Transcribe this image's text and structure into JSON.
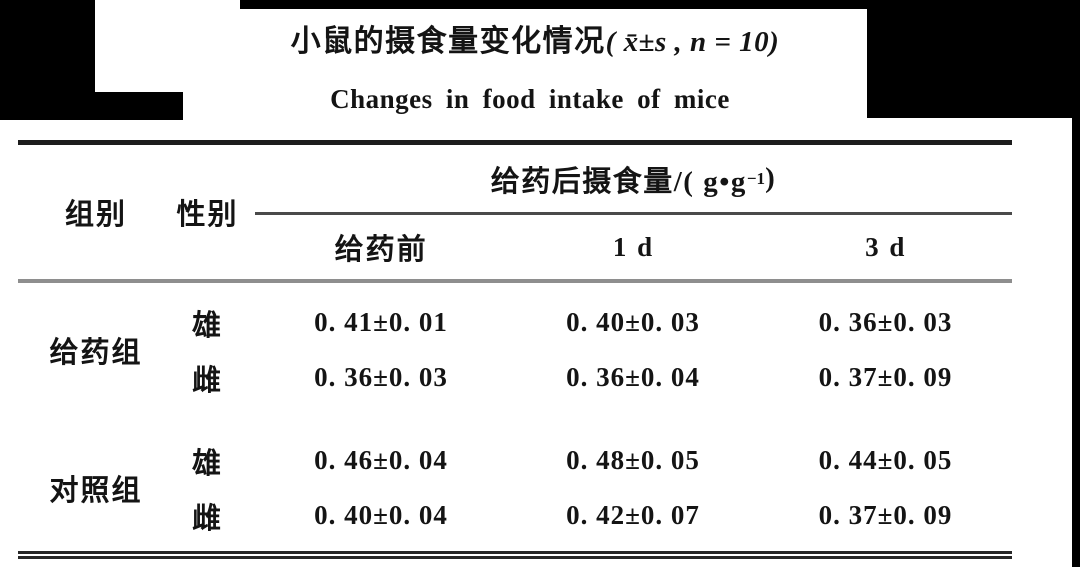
{
  "title": {
    "zh_main": "小鼠的摄食量变化情况",
    "zh_stat": "( x̄±s , n = 10)",
    "en": "Changes in food intake of mice"
  },
  "table": {
    "col_group": "组别",
    "col_sex": "性别",
    "spanner": {
      "prefix": "给药后摄食量/( g•g",
      "sup": "−1",
      "suffix": ")"
    },
    "subcols": [
      "给药前",
      "1 d",
      "3 d"
    ],
    "groups": [
      {
        "name": "给药组",
        "rows": [
          {
            "sex": "雄",
            "values": [
              "0. 41±0. 01",
              "0. 40±0. 03",
              "0. 36±0. 03"
            ]
          },
          {
            "sex": "雌",
            "values": [
              "0. 36±0. 03",
              "0. 36±0. 04",
              "0. 37±0. 09"
            ]
          }
        ]
      },
      {
        "name": "对照组",
        "rows": [
          {
            "sex": "雄",
            "values": [
              "0. 46±0. 04",
              "0. 48±0. 05",
              "0. 44±0. 05"
            ]
          },
          {
            "sex": "雌",
            "values": [
              "0. 40±0. 04",
              "0. 42±0. 07",
              "0. 37±0. 09"
            ]
          }
        ]
      }
    ]
  },
  "chart_data": {
    "type": "table",
    "title": "小鼠的摄食量变化情况 (x̄±s, n=10) — Changes in food intake of mice",
    "unit": "给药后摄食量/(g·g⁻¹)",
    "columns": [
      "组别",
      "性别",
      "给药前",
      "1 d",
      "3 d"
    ],
    "rows": [
      [
        "给药组",
        "雄",
        "0.41±0.01",
        "0.40±0.03",
        "0.36±0.03"
      ],
      [
        "给药组",
        "雌",
        "0.36±0.03",
        "0.36±0.04",
        "0.37±0.09"
      ],
      [
        "对照组",
        "雄",
        "0.46±0.04",
        "0.48±0.05",
        "0.44±0.05"
      ],
      [
        "对照组",
        "雌",
        "0.40±0.04",
        "0.42±0.07",
        "0.37±0.09"
      ]
    ]
  },
  "colors": {
    "text": "#141414",
    "rule_top": "#1d1d1d",
    "rule_spanner": "#4a4a4a",
    "rule_header": "#8e8e8e",
    "rule_bottom": "#262626",
    "artifact": "#000000",
    "background": "#ffffff"
  }
}
